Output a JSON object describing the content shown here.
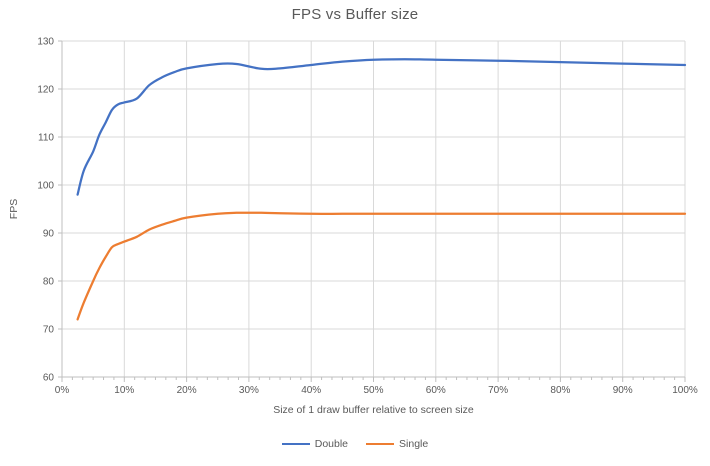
{
  "chart_data": {
    "type": "line",
    "title": "FPS vs Buffer size",
    "xlabel": "Size of 1 draw buffer relative to screen size",
    "ylabel": "FPS",
    "xlim": [
      0,
      100
    ],
    "ylim": [
      60,
      130
    ],
    "x_ticks": [
      0,
      10,
      20,
      30,
      40,
      50,
      60,
      70,
      80,
      90,
      100
    ],
    "x_tick_suffix": "%",
    "y_ticks": [
      60,
      70,
      80,
      90,
      100,
      110,
      120,
      130
    ],
    "minor_ticks_per_interval": 6,
    "grid": true,
    "legend_position": "bottom-center",
    "line_style": "smooth",
    "colors": {
      "grid": "#d9d9d9",
      "axis": "#bfbfbf",
      "text": "#595959",
      "background": "#ffffff"
    },
    "x": [
      2.5,
      3.5,
      5,
      6,
      7,
      8,
      9,
      10,
      12,
      14,
      16,
      18,
      20,
      25,
      28,
      32,
      35,
      40,
      45,
      50,
      55,
      60,
      70,
      80,
      90,
      100
    ],
    "series": [
      {
        "name": "Double",
        "color": "#4472c4",
        "values": [
          98,
          103,
          107,
          110.5,
          113,
          115.6,
          116.8,
          117.2,
          118,
          120.8,
          122.4,
          123.5,
          124.3,
          125.2,
          125.2,
          124.2,
          124.3,
          125,
          125.7,
          126.1,
          126.2,
          126.1,
          125.9,
          125.6,
          125.3,
          125
        ]
      },
      {
        "name": "Single",
        "color": "#ed7d31",
        "values": [
          72,
          75.5,
          80,
          82.7,
          85,
          87,
          87.7,
          88.2,
          89.2,
          90.7,
          91.7,
          92.5,
          93.2,
          94,
          94.2,
          94.2,
          94.1,
          94,
          94,
          94,
          94,
          94,
          94,
          94,
          94,
          94
        ]
      }
    ]
  }
}
